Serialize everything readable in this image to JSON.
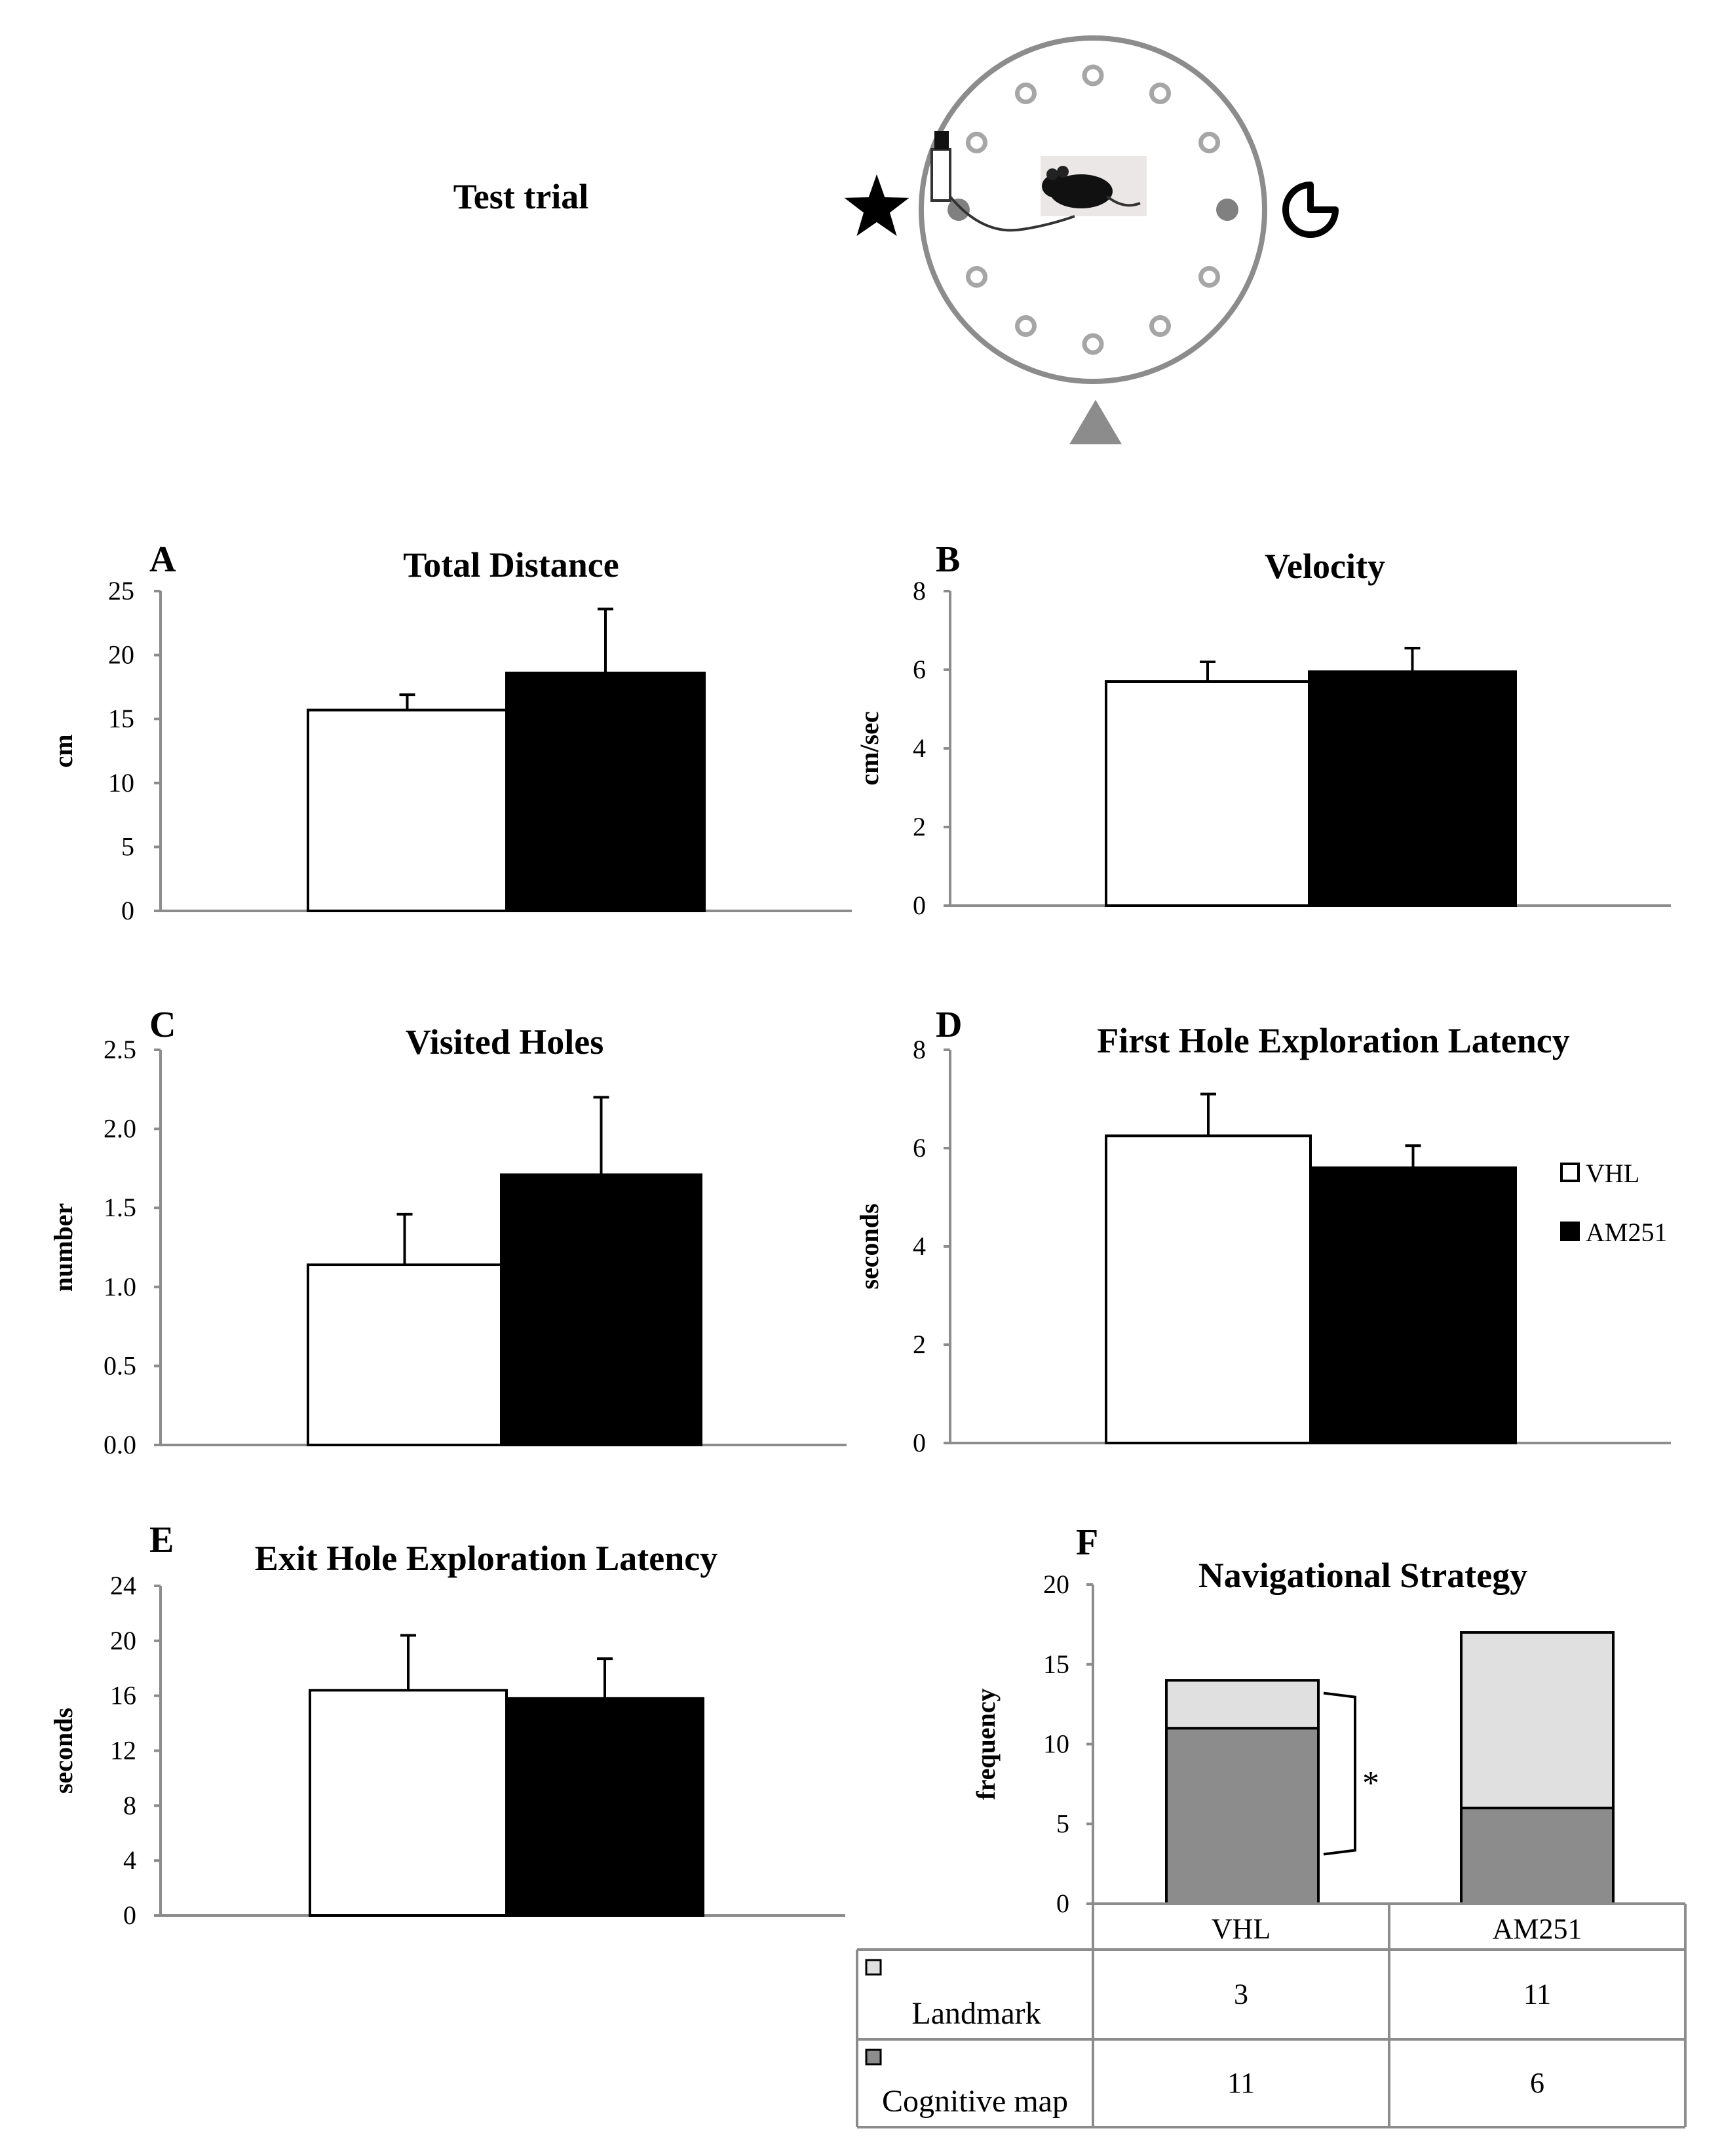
{
  "diagram": {
    "title": "Test trial",
    "landmarks": [
      "star-icon",
      "pie-icon",
      "triangle-icon"
    ],
    "hole_count": 12,
    "colors": {
      "ring": "#8c8c8c",
      "hole": "#a6a6a6",
      "target": "#808080",
      "triangle": "#8c8c8c"
    }
  },
  "legend": {
    "items": [
      "VHL",
      "AM251"
    ],
    "colors": [
      "#ffffff",
      "#000000"
    ]
  },
  "chart_data": [
    {
      "panel": "A",
      "type": "bar",
      "title": "Total Distance",
      "ylabel": "cm",
      "ylim": [
        0,
        25
      ],
      "yticks": [
        "0",
        "5",
        "10",
        "15",
        "20",
        "25"
      ],
      "categories": [
        "VHL",
        "AM251"
      ],
      "values": [
        15.7,
        18.6
      ],
      "errors": [
        1.2,
        5.0
      ],
      "colors": [
        "#ffffff",
        "#000000"
      ]
    },
    {
      "panel": "B",
      "type": "bar",
      "title": "Velocity",
      "ylabel": "cm/sec",
      "ylim": [
        0,
        8
      ],
      "yticks": [
        "0",
        "2",
        "4",
        "6",
        "8"
      ],
      "categories": [
        "VHL",
        "AM251"
      ],
      "values": [
        5.7,
        5.95
      ],
      "errors": [
        0.5,
        0.6
      ],
      "colors": [
        "#ffffff",
        "#000000"
      ]
    },
    {
      "panel": "C",
      "type": "bar",
      "title": "Visited Holes",
      "ylabel": "number",
      "ylim": [
        0,
        2.5
      ],
      "yticks": [
        "0.0",
        "0.5",
        "1.0",
        "1.5",
        "2.0",
        "2.5"
      ],
      "categories": [
        "VHL",
        "AM251"
      ],
      "values": [
        1.14,
        1.71
      ],
      "errors": [
        0.32,
        0.49
      ],
      "colors": [
        "#ffffff",
        "#000000"
      ]
    },
    {
      "panel": "D",
      "type": "bar",
      "title": "First Hole Exploration Latency",
      "ylabel": "seconds",
      "ylim": [
        0,
        8
      ],
      "yticks": [
        "0",
        "2",
        "4",
        "6",
        "8"
      ],
      "categories": [
        "VHL",
        "AM251"
      ],
      "values": [
        6.25,
        5.6
      ],
      "errors": [
        0.85,
        0.45
      ],
      "colors": [
        "#ffffff",
        "#000000"
      ]
    },
    {
      "panel": "E",
      "type": "bar",
      "title": "Exit Hole Exploration Latency",
      "ylabel": "seconds",
      "ylim": [
        0,
        24
      ],
      "yticks": [
        "0",
        "4",
        "8",
        "12",
        "16",
        "20",
        "24"
      ],
      "categories": [
        "VHL",
        "AM251"
      ],
      "values": [
        16.4,
        15.8
      ],
      "errors": [
        4.0,
        2.9
      ],
      "colors": [
        "#ffffff",
        "#000000"
      ]
    },
    {
      "panel": "F",
      "type": "bar",
      "stacked": true,
      "title": "Navigational Strategy",
      "ylabel": "frequency",
      "ylim": [
        0,
        20
      ],
      "yticks": [
        "0",
        "5",
        "10",
        "15",
        "20"
      ],
      "categories": [
        "VHL",
        "AM251"
      ],
      "series": [
        {
          "name": "Cognitive map",
          "values": [
            11,
            6
          ],
          "color": "#8c8c8c"
        },
        {
          "name": "Landmark",
          "values": [
            3,
            11
          ],
          "color": "#e0e0e0"
        }
      ],
      "annotation": "*",
      "table": {
        "rows": [
          {
            "label": "Landmark",
            "values": [
              "3",
              "11"
            ]
          },
          {
            "label": "Cognitive map",
            "values": [
              "11",
              "6"
            ]
          }
        ]
      }
    }
  ]
}
